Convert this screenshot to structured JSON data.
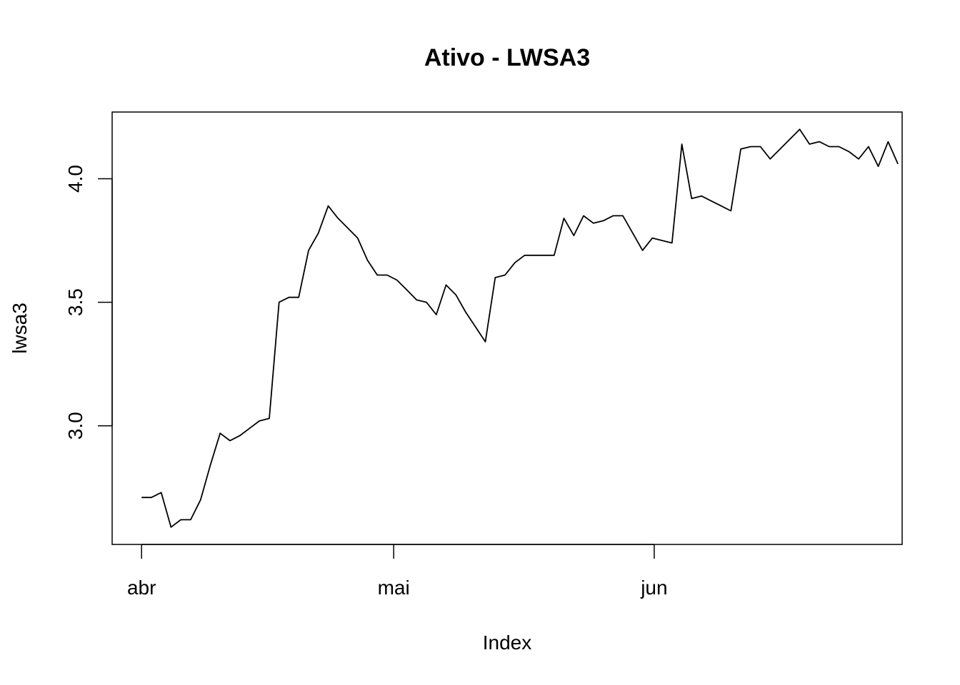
{
  "chart_data": {
    "type": "line",
    "title": "Ativo - LWSA3",
    "xlabel": "Index",
    "ylabel": "lwsa3",
    "x_ticks": [
      {
        "label": "abr",
        "index": 0
      },
      {
        "label": "mai",
        "index": 30
      },
      {
        "label": "jun",
        "index": 61
      }
    ],
    "y_ticks": [
      3.0,
      3.5,
      4.0
    ],
    "y_tick_labels": [
      "3.0",
      "3.5",
      "4.0"
    ],
    "xlim": [
      -3.5,
      90.5
    ],
    "ylim": [
      2.52,
      4.27
    ],
    "grid": false,
    "series": [
      {
        "values": [
          2.71,
          2.71,
          2.73,
          2.59,
          2.62,
          2.62,
          2.7,
          2.84,
          2.97,
          2.94,
          2.96,
          2.99,
          3.02,
          3.03,
          3.5,
          3.52,
          3.52,
          3.71,
          3.78,
          3.89,
          3.84,
          3.8,
          3.76,
          3.67,
          3.61,
          3.61,
          3.59,
          3.55,
          3.51,
          3.5,
          3.45,
          3.57,
          3.53,
          3.46,
          3.4,
          3.34,
          3.6,
          3.61,
          3.66,
          3.69,
          3.69,
          3.69,
          3.69,
          3.84,
          3.77,
          3.85,
          3.82,
          3.83,
          3.85,
          3.85,
          3.78,
          3.71,
          3.76,
          3.75,
          3.74,
          4.14,
          3.92,
          3.93,
          3.91,
          3.89,
          3.87,
          4.12,
          4.13,
          4.13,
          4.08,
          4.12,
          4.16,
          4.2,
          4.14,
          4.15,
          4.13,
          4.13,
          4.11,
          4.08,
          4.13,
          4.05,
          4.15,
          4.06
        ],
        "x": [
          0,
          1,
          2,
          3,
          6,
          7,
          8,
          9,
          10,
          11,
          13,
          14,
          15,
          16,
          17,
          20,
          21,
          22,
          23,
          24,
          27,
          28,
          29,
          30,
          31,
          34,
          35,
          36,
          37,
          38,
          41,
          42,
          43,
          44,
          45,
          46,
          47,
          48,
          49,
          50,
          51,
          54,
          55,
          56,
          57,
          58,
          59,
          61,
          62,
          63,
          64,
          65,
          66,
          68,
          69,
          70,
          71,
          72,
          73,
          75,
          76,
          77,
          78,
          79,
          80,
          82,
          83,
          84,
          85,
          86,
          87,
          88,
          89,
          90,
          89,
          89,
          90,
          90
        ]
      }
    ]
  }
}
